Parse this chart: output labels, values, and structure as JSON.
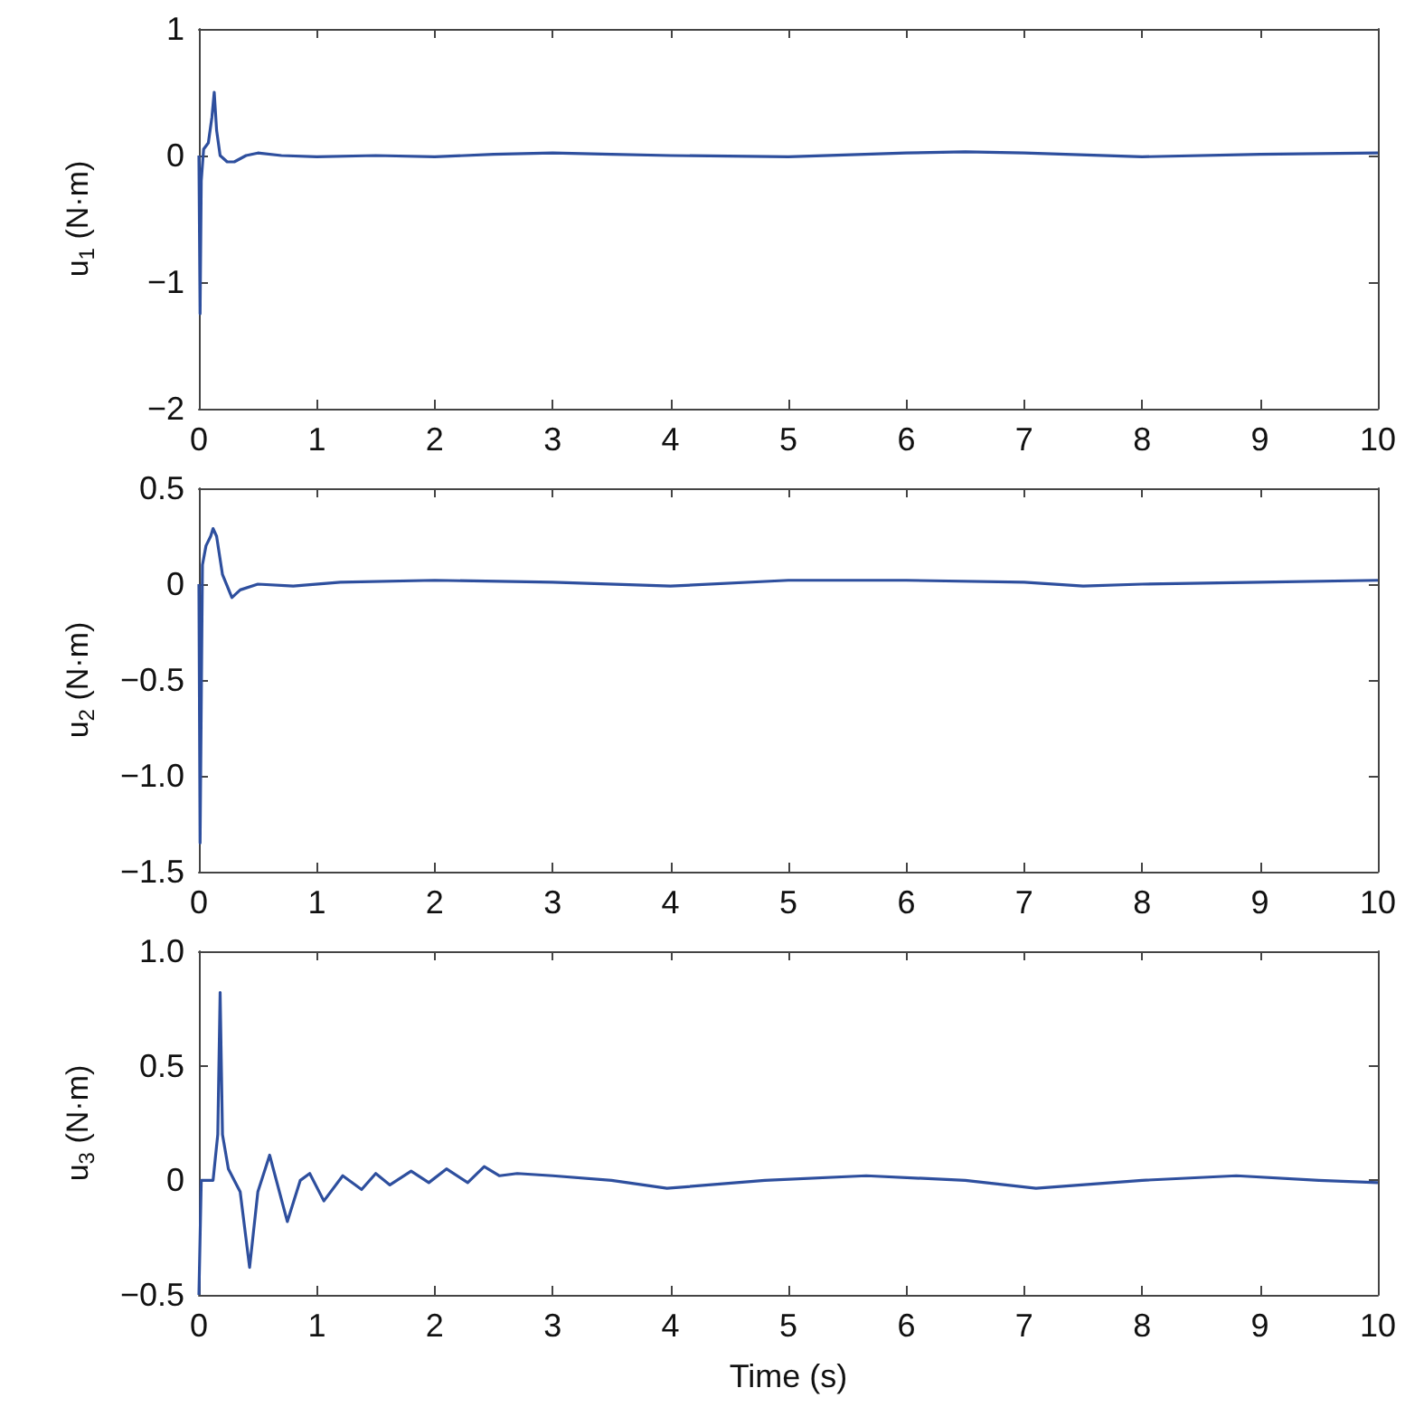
{
  "chart_data": [
    {
      "type": "line",
      "ylabel": "u$_{1}$ (N·m)",
      "xlim": [
        0,
        10
      ],
      "xticks": [
        0,
        1,
        2,
        3,
        4,
        5,
        6,
        7,
        8,
        9,
        10
      ],
      "ylim": [
        -2,
        1
      ],
      "yticks": [
        {
          "value": -2,
          "label": "−2"
        },
        {
          "value": -1,
          "label": "−1"
        },
        0,
        1
      ],
      "grid": false,
      "x": [
        0,
        0.01,
        0.02,
        0.04,
        0.08,
        0.11,
        0.13,
        0.15,
        0.18,
        0.24,
        0.3,
        0.4,
        0.5,
        0.7,
        1,
        1.5,
        2,
        2.5,
        3,
        3.5,
        4,
        5,
        6,
        6.5,
        7,
        8,
        9,
        10
      ],
      "series": [
        {
          "color": "#2e4f9e",
          "values": [
            0,
            -1.25,
            -0.2,
            0.05,
            0.1,
            0.3,
            0.5,
            0.2,
            0.0,
            -0.05,
            -0.05,
            0.0,
            0.02,
            0.0,
            -0.01,
            0,
            -0.01,
            0.01,
            0.02,
            0.01,
            0,
            -0.01,
            0.02,
            0.03,
            0.02,
            -0.01,
            0.01,
            0.02
          ]
        }
      ]
    },
    {
      "type": "line",
      "ylabel": "u$_{2}$ (N·m)",
      "xlim": [
        0,
        10
      ],
      "xticks": [
        0,
        1,
        2,
        3,
        4,
        5,
        6,
        7,
        8,
        9,
        10
      ],
      "ylim": [
        -1.5,
        0.5
      ],
      "yticks": [
        {
          "value": -1.5,
          "label": "−1.5"
        },
        {
          "value": -1,
          "label": "−1.0"
        },
        {
          "value": -0.5,
          "label": "−0.5"
        },
        0,
        0.5
      ],
      "grid": false,
      "x": [
        0,
        0.01,
        0.03,
        0.06,
        0.1,
        0.12,
        0.15,
        0.2,
        0.28,
        0.35,
        0.5,
        0.8,
        1.2,
        2,
        3,
        4,
        5,
        6,
        7,
        7.5,
        8,
        9,
        10
      ],
      "series": [
        {
          "color": "#2e4f9e",
          "values": [
            0,
            -1.35,
            0.1,
            0.2,
            0.25,
            0.29,
            0.25,
            0.05,
            -0.07,
            -0.03,
            0,
            -0.01,
            0.01,
            0.02,
            0.01,
            -0.01,
            0.02,
            0.02,
            0.01,
            -0.01,
            0,
            0.01,
            0.02
          ]
        }
      ]
    },
    {
      "type": "line",
      "ylabel": "u$_{3}$ (N·m)",
      "xlabel": "Time (s)",
      "xlim": [
        0,
        10
      ],
      "xticks": [
        0,
        1,
        2,
        3,
        4,
        5,
        6,
        7,
        8,
        9,
        10
      ],
      "ylim": [
        -0.5,
        1
      ],
      "yticks": [
        {
          "value": -0.5,
          "label": "−0.5"
        },
        0,
        {
          "value": 0.5,
          "label": "0.5"
        },
        {
          "value": 1,
          "label": "1.0"
        }
      ],
      "grid": false,
      "x": [
        0,
        0.02,
        0.05,
        0.12,
        0.16,
        0.18,
        0.2,
        0.25,
        0.35,
        0.43,
        0.5,
        0.6,
        0.75,
        0.86,
        0.94,
        1.06,
        1.22,
        1.38,
        1.5,
        1.62,
        1.8,
        1.95,
        2.1,
        2.28,
        2.42,
        2.55,
        2.7,
        3,
        3.5,
        3.97,
        4.8,
        5.66,
        6.5,
        7.1,
        8,
        8.8,
        9.5,
        10
      ],
      "series": [
        {
          "color": "#2e4f9e",
          "values": [
            -0.5,
            0.0,
            0.0,
            0.0,
            0.2,
            0.82,
            0.2,
            0.05,
            -0.05,
            -0.38,
            -0.05,
            0.11,
            -0.18,
            0.0,
            0.03,
            -0.09,
            0.02,
            -0.04,
            0.03,
            -0.02,
            0.04,
            -0.01,
            0.05,
            -0.01,
            0.06,
            0.02,
            0.03,
            0.02,
            0.0,
            -0.035,
            0.0,
            0.02,
            0.0,
            -0.035,
            0.0,
            0.02,
            0.0,
            -0.01
          ]
        }
      ]
    }
  ]
}
